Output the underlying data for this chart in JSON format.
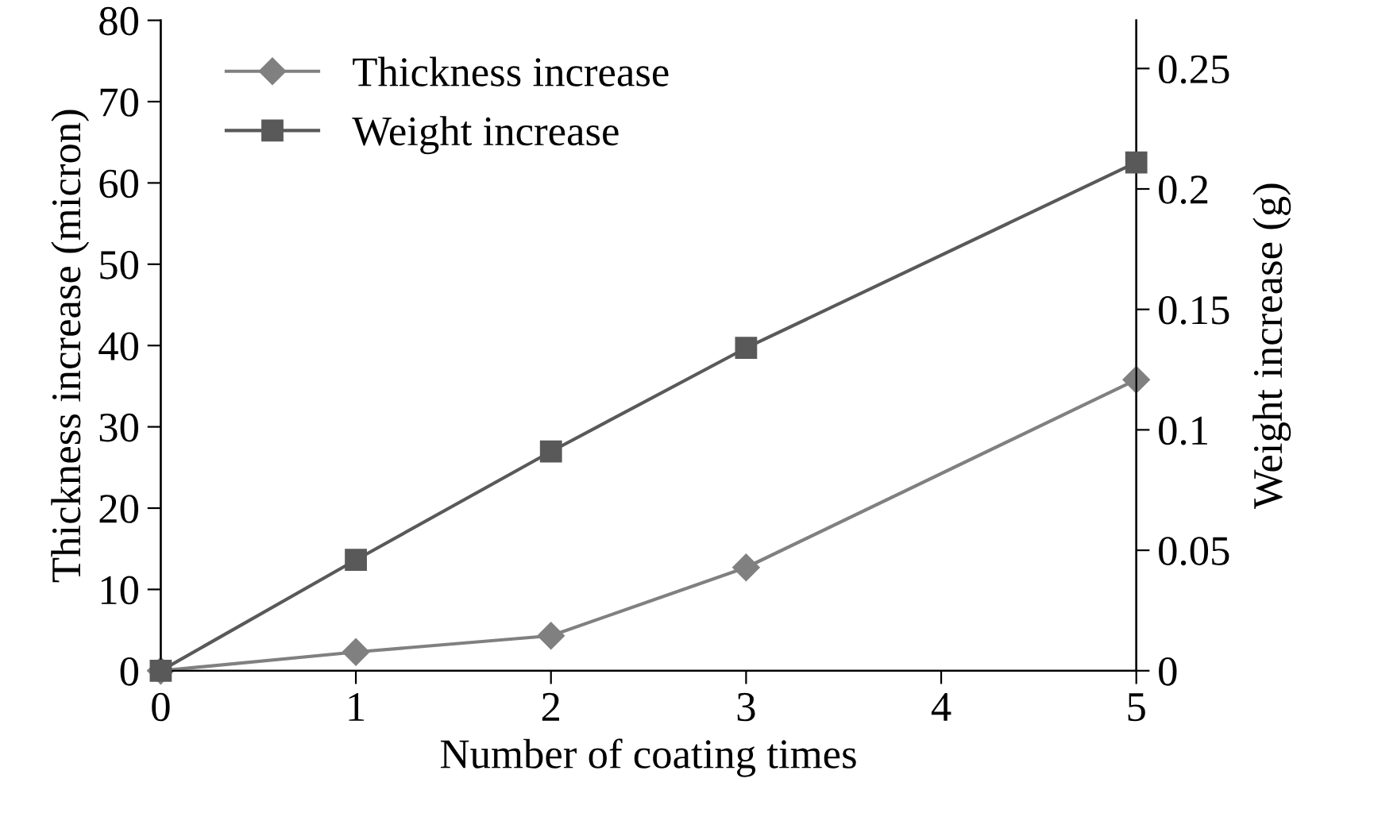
{
  "chart_data": {
    "type": "line",
    "xlabel": "Number of coating times",
    "ylabel": "Thickness increase (micron)",
    "y2label": "Weight increase (g)",
    "x": [
      0,
      1,
      2,
      3,
      5
    ],
    "xlim": [
      0,
      5
    ],
    "xticks": [
      0,
      1,
      2,
      3,
      4,
      5
    ],
    "ylim": [
      0,
      80
    ],
    "yticks": [
      0,
      10,
      20,
      30,
      40,
      50,
      60,
      70,
      80
    ],
    "y2lim": [
      0,
      0.27
    ],
    "y2ticks": [
      0,
      0.05,
      0.1,
      0.15,
      0.2,
      0.25
    ],
    "series": [
      {
        "name": "Thickness increase",
        "color": "#808080",
        "marker": "diamond",
        "values": [
          0,
          2.3,
          4.3,
          12.7,
          35.8
        ]
      },
      {
        "name": "Weight increase",
        "color": "#595959",
        "marker": "square",
        "axis": "y2",
        "values": [
          0,
          0.046,
          0.091,
          0.134,
          0.211
        ]
      }
    ],
    "legend": "top left",
    "grid": false,
    "line_style": "solid"
  }
}
